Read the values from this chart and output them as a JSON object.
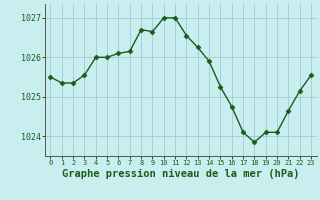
{
  "x": [
    0,
    1,
    2,
    3,
    4,
    5,
    6,
    7,
    8,
    9,
    10,
    11,
    12,
    13,
    14,
    15,
    16,
    17,
    18,
    19,
    20,
    21,
    22,
    23
  ],
  "y": [
    1025.5,
    1025.35,
    1025.35,
    1025.55,
    1026.0,
    1026.0,
    1026.1,
    1026.15,
    1026.7,
    1026.65,
    1027.0,
    1027.0,
    1026.55,
    1026.25,
    1025.9,
    1025.25,
    1024.75,
    1024.1,
    1023.85,
    1024.1,
    1024.1,
    1024.65,
    1025.15,
    1025.55
  ],
  "line_color": "#1a5c1a",
  "marker": "D",
  "marker_size": 2.5,
  "bg_color": "#c8eef0",
  "grid_color": "#aacdd6",
  "xlabel": "Graphe pression niveau de la mer (hPa)",
  "xlabel_fontsize": 7.5,
  "xlabel_color": "#1a5c1a",
  "tick_color": "#1a5c1a",
  "ylim": [
    1023.5,
    1027.35
  ],
  "yticks": [
    1024,
    1025,
    1026,
    1027
  ],
  "xlim": [
    -0.5,
    23.5
  ],
  "xtick_labels": [
    "0",
    "1",
    "2",
    "3",
    "4",
    "5",
    "6",
    "7",
    "8",
    "9",
    "10",
    "11",
    "12",
    "13",
    "14",
    "15",
    "16",
    "17",
    "18",
    "19",
    "20",
    "21",
    "22",
    "23"
  ]
}
